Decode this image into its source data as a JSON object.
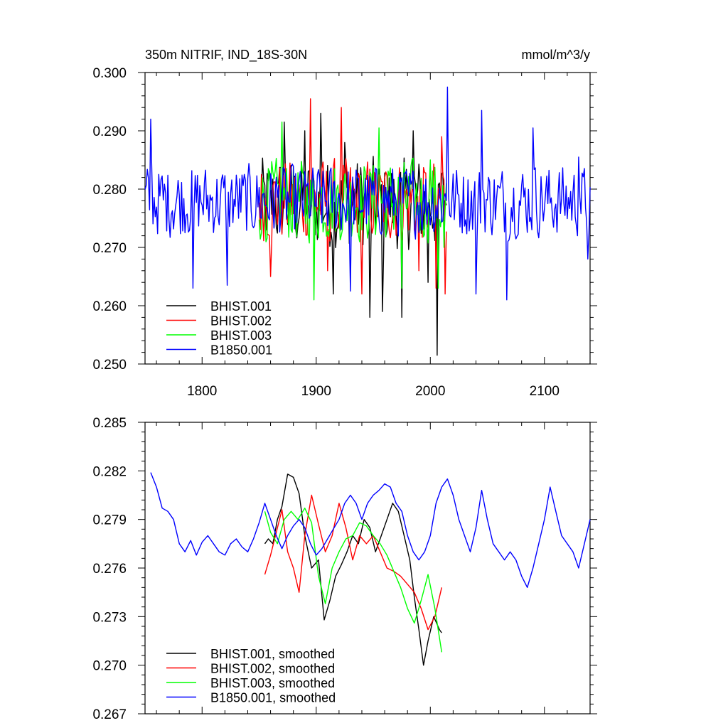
{
  "colors": {
    "BHIST.001": "#000000",
    "BHIST.002": "#ff0000",
    "BHIST.003": "#00ff00",
    "B1850.001": "#0000ff"
  },
  "chart_data": [
    {
      "type": "line",
      "title": "350m NITRIF, IND_18S-30N",
      "units": "mmol/m^3/y",
      "xlim": [
        1750,
        2140
      ],
      "ylim": [
        0.25,
        0.3
      ],
      "xticks": [
        1800,
        1900,
        2000,
        2100
      ],
      "xtick_labels": [
        "1800",
        "1900",
        "2000",
        "2100"
      ],
      "yticks": [
        0.25,
        0.26,
        0.27,
        0.28,
        0.29,
        0.3
      ],
      "ytick_labels": [
        "0.250",
        "0.260",
        "0.270",
        "0.280",
        "0.290",
        "0.300"
      ],
      "legend": "bottom-left",
      "series": [
        {
          "name": "BHIST.001",
          "color": "#000000",
          "x_start": 1850,
          "x_end": 2014,
          "mean": 0.2775,
          "amp": 0.0085,
          "keypoints": [
            [
              1872,
              0.2915
            ],
            [
              1890,
              0.29
            ],
            [
              1904,
              0.293
            ],
            [
              1915,
              0.262
            ],
            [
              1925,
              0.288
            ],
            [
              1947,
              0.258
            ],
            [
              1958,
              0.259
            ],
            [
              1975,
              0.258
            ],
            [
              1985,
              0.29
            ],
            [
              1998,
              0.264
            ],
            [
              2006,
              0.2515
            ],
            [
              2013,
              0.278
            ]
          ]
        },
        {
          "name": "BHIST.002",
          "color": "#ff0000",
          "x_start": 1850,
          "x_end": 2014,
          "mean": 0.278,
          "amp": 0.0075,
          "keypoints": [
            [
              1860,
              0.265
            ],
            [
              1895,
              0.2955
            ],
            [
              1910,
              0.266
            ],
            [
              1922,
              0.294
            ],
            [
              1940,
              0.262
            ],
            [
              1990,
              0.266
            ],
            [
              2005,
              0.263
            ],
            [
              2010,
              0.289
            ],
            [
              2013,
              0.262
            ]
          ]
        },
        {
          "name": "BHIST.003",
          "color": "#00ff00",
          "x_start": 1850,
          "x_end": 2014,
          "mean": 0.278,
          "amp": 0.0075,
          "keypoints": [
            [
              1870,
              0.2915
            ],
            [
              1898,
              0.261
            ],
            [
              1955,
              0.2905
            ],
            [
              1975,
              0.263
            ],
            [
              2000,
              0.285
            ],
            [
              2007,
              0.263
            ],
            [
              2012,
              0.27
            ]
          ]
        },
        {
          "name": "B1850.001",
          "color": "#0000ff",
          "x_start": 1750,
          "x_end": 2140,
          "mean": 0.278,
          "amp": 0.0065,
          "keypoints": [
            [
              1755,
              0.292
            ],
            [
              1792,
              0.263
            ],
            [
              1822,
              0.2635
            ],
            [
              1930,
              0.2625
            ],
            [
              2015,
              0.2975
            ],
            [
              2040,
              0.262
            ],
            [
              2045,
              0.2935
            ],
            [
              2067,
              0.261
            ],
            [
              2090,
              0.2905
            ],
            [
              2130,
              0.2855
            ],
            [
              2138,
              0.268
            ]
          ]
        }
      ]
    },
    {
      "type": "line",
      "xlim": [
        1750,
        2140
      ],
      "ylim": [
        0.267,
        0.285
      ],
      "xticks": [
        1800,
        1900,
        2000,
        2100
      ],
      "yticks": [
        0.267,
        0.27,
        0.273,
        0.276,
        0.279,
        0.282,
        0.285
      ],
      "ytick_labels": [
        "0.267",
        "0.270",
        "0.273",
        "0.276",
        "0.279",
        "0.282",
        "0.285"
      ],
      "legend": "bottom-left",
      "series": [
        {
          "name": "BHIST.001, smoothed",
          "color": "#000000",
          "points": [
            [
              1855,
              0.2775
            ],
            [
              1858,
              0.2778
            ],
            [
              1862,
              0.2775
            ],
            [
              1866,
              0.279
            ],
            [
              1870,
              0.2798
            ],
            [
              1875,
              0.2818
            ],
            [
              1880,
              0.2816
            ],
            [
              1885,
              0.2806
            ],
            [
              1890,
              0.278
            ],
            [
              1896,
              0.276
            ],
            [
              1902,
              0.2765
            ],
            [
              1907,
              0.2728
            ],
            [
              1912,
              0.274
            ],
            [
              1917,
              0.2755
            ],
            [
              1922,
              0.2762
            ],
            [
              1927,
              0.277
            ],
            [
              1932,
              0.278
            ],
            [
              1937,
              0.2775
            ],
            [
              1942,
              0.279
            ],
            [
              1947,
              0.2785
            ],
            [
              1952,
              0.277
            ],
            [
              1957,
              0.278
            ],
            [
              1962,
              0.279
            ],
            [
              1967,
              0.28
            ],
            [
              1972,
              0.2795
            ],
            [
              1977,
              0.278
            ],
            [
              1982,
              0.2765
            ],
            [
              1986,
              0.2742
            ],
            [
              1990,
              0.2722
            ],
            [
              1994,
              0.27
            ],
            [
              1998,
              0.2715
            ],
            [
              2003,
              0.273
            ],
            [
              2008,
              0.2722
            ],
            [
              2010,
              0.272
            ]
          ]
        },
        {
          "name": "BHIST.002, smoothed",
          "color": "#ff0000",
          "points": [
            [
              1855,
              0.2756
            ],
            [
              1860,
              0.2768
            ],
            [
              1865,
              0.2782
            ],
            [
              1870,
              0.2796
            ],
            [
              1875,
              0.277
            ],
            [
              1880,
              0.276
            ],
            [
              1885,
              0.2745
            ],
            [
              1890,
              0.278
            ],
            [
              1896,
              0.2805
            ],
            [
              1902,
              0.2787
            ],
            [
              1908,
              0.277
            ],
            [
              1914,
              0.278
            ],
            [
              1920,
              0.28
            ],
            [
              1926,
              0.2785
            ],
            [
              1932,
              0.2765
            ],
            [
              1938,
              0.278
            ],
            [
              1944,
              0.2775
            ],
            [
              1950,
              0.278
            ],
            [
              1956,
              0.277
            ],
            [
              1962,
              0.276
            ],
            [
              1968,
              0.2758
            ],
            [
              1974,
              0.2755
            ],
            [
              1980,
              0.275
            ],
            [
              1986,
              0.2745
            ],
            [
              1992,
              0.2735
            ],
            [
              1998,
              0.2722
            ],
            [
              2004,
              0.273
            ],
            [
              2010,
              0.2748
            ]
          ]
        },
        {
          "name": "BHIST.003, smoothed",
          "color": "#00ff00",
          "points": [
            [
              1855,
              0.2795
            ],
            [
              1860,
              0.2782
            ],
            [
              1866,
              0.2775
            ],
            [
              1872,
              0.279
            ],
            [
              1878,
              0.2795
            ],
            [
              1884,
              0.279
            ],
            [
              1890,
              0.2797
            ],
            [
              1896,
              0.2788
            ],
            [
              1902,
              0.2755
            ],
            [
              1908,
              0.2738
            ],
            [
              1914,
              0.276
            ],
            [
              1920,
              0.277
            ],
            [
              1926,
              0.2778
            ],
            [
              1932,
              0.278
            ],
            [
              1938,
              0.2788
            ],
            [
              1944,
              0.2786
            ],
            [
              1950,
              0.278
            ],
            [
              1956,
              0.2775
            ],
            [
              1962,
              0.2768
            ],
            [
              1968,
              0.2758
            ],
            [
              1974,
              0.2748
            ],
            [
              1980,
              0.2735
            ],
            [
              1986,
              0.2726
            ],
            [
              1992,
              0.274
            ],
            [
              1998,
              0.2756
            ],
            [
              2004,
              0.2735
            ],
            [
              2010,
              0.2708
            ]
          ]
        },
        {
          "name": "B1850.001, smoothed",
          "color": "#0000ff",
          "points": [
            [
              1755,
              0.2819
            ],
            [
              1760,
              0.281
            ],
            [
              1765,
              0.2797
            ],
            [
              1770,
              0.2795
            ],
            [
              1775,
              0.279
            ],
            [
              1780,
              0.2775
            ],
            [
              1785,
              0.277
            ],
            [
              1790,
              0.2777
            ],
            [
              1795,
              0.2768
            ],
            [
              1800,
              0.2776
            ],
            [
              1805,
              0.278
            ],
            [
              1810,
              0.2775
            ],
            [
              1815,
              0.277
            ],
            [
              1820,
              0.2768
            ],
            [
              1825,
              0.2775
            ],
            [
              1830,
              0.2778
            ],
            [
              1835,
              0.2773
            ],
            [
              1840,
              0.277
            ],
            [
              1845,
              0.2778
            ],
            [
              1850,
              0.2788
            ],
            [
              1855,
              0.28
            ],
            [
              1860,
              0.279
            ],
            [
              1865,
              0.278
            ],
            [
              1870,
              0.2772
            ],
            [
              1875,
              0.278
            ],
            [
              1880,
              0.2786
            ],
            [
              1885,
              0.279
            ],
            [
              1890,
              0.2785
            ],
            [
              1895,
              0.2775
            ],
            [
              1900,
              0.2768
            ],
            [
              1905,
              0.2772
            ],
            [
              1910,
              0.2778
            ],
            [
              1915,
              0.2784
            ],
            [
              1920,
              0.279
            ],
            [
              1925,
              0.28
            ],
            [
              1930,
              0.2805
            ],
            [
              1935,
              0.28
            ],
            [
              1940,
              0.279
            ],
            [
              1945,
              0.28
            ],
            [
              1950,
              0.2805
            ],
            [
              1955,
              0.2808
            ],
            [
              1960,
              0.2812
            ],
            [
              1965,
              0.281
            ],
            [
              1970,
              0.28
            ],
            [
              1975,
              0.2795
            ],
            [
              1980,
              0.278
            ],
            [
              1985,
              0.277
            ],
            [
              1990,
              0.2765
            ],
            [
              1995,
              0.277
            ],
            [
              2000,
              0.278
            ],
            [
              2005,
              0.28
            ],
            [
              2010,
              0.281
            ],
            [
              2015,
              0.2815
            ],
            [
              2020,
              0.2805
            ],
            [
              2025,
              0.279
            ],
            [
              2030,
              0.278
            ],
            [
              2035,
              0.277
            ],
            [
              2040,
              0.2785
            ],
            [
              2045,
              0.2808
            ],
            [
              2050,
              0.279
            ],
            [
              2055,
              0.2775
            ],
            [
              2060,
              0.277
            ],
            [
              2065,
              0.2765
            ],
            [
              2070,
              0.277
            ],
            [
              2075,
              0.2765
            ],
            [
              2080,
              0.2755
            ],
            [
              2085,
              0.2748
            ],
            [
              2090,
              0.276
            ],
            [
              2095,
              0.2775
            ],
            [
              2100,
              0.279
            ],
            [
              2105,
              0.281
            ],
            [
              2110,
              0.2795
            ],
            [
              2115,
              0.278
            ],
            [
              2120,
              0.2775
            ],
            [
              2125,
              0.277
            ],
            [
              2130,
              0.276
            ],
            [
              2135,
              0.2775
            ],
            [
              2140,
              0.279
            ]
          ]
        }
      ]
    }
  ]
}
